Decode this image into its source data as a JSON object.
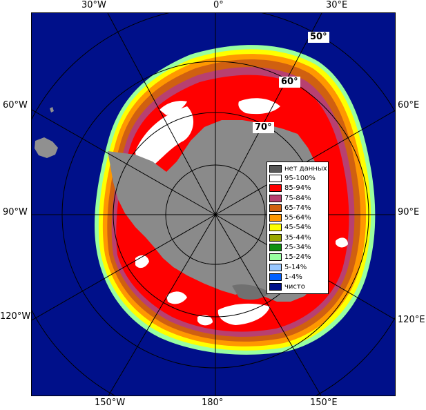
{
  "longitude_labels": {
    "top": [
      "30°W",
      "0°",
      "30°E"
    ],
    "left": [
      "60°W",
      "90°W",
      "120°W"
    ],
    "right": [
      "60°E",
      "90°E",
      "120°E"
    ],
    "bottom": [
      "150°W",
      "180°",
      "150°E"
    ]
  },
  "latitude_labels": [
    "50°",
    "60°",
    "70°"
  ],
  "legend": [
    {
      "label": "нет данных",
      "color": "#585858"
    },
    {
      "label": "95-100%",
      "color": "#ffffff"
    },
    {
      "label": "85-94%",
      "color": "#ff0000"
    },
    {
      "label": "75-84%",
      "color": "#b84070"
    },
    {
      "label": "65-74%",
      "color": "#d06010"
    },
    {
      "label": "55-64%",
      "color": "#ff9800"
    },
    {
      "label": "45-54%",
      "color": "#ffff00"
    },
    {
      "label": "35-44%",
      "color": "#9aa800"
    },
    {
      "label": "25-34%",
      "color": "#109010"
    },
    {
      "label": "15-24%",
      "color": "#98ffa0"
    },
    {
      "label": "5-14%",
      "color": "#98c8ff"
    },
    {
      "label": "1-4%",
      "color": "#0060ff"
    },
    {
      "label": "чисто",
      "color": "#00108a"
    }
  ],
  "colors": {
    "ocean": "#00108a",
    "land": "#8a8a8a",
    "grid": "#000000",
    "ice_95_100": "#ffffff",
    "ice_85_94": "#ff0000",
    "ice_75_84": "#b84070",
    "ice_65_74": "#d06010",
    "ice_55_64": "#ff9800",
    "ice_45_54": "#ffff00",
    "ice_15_24": "#98ffa0",
    "land_other": "#909090"
  }
}
